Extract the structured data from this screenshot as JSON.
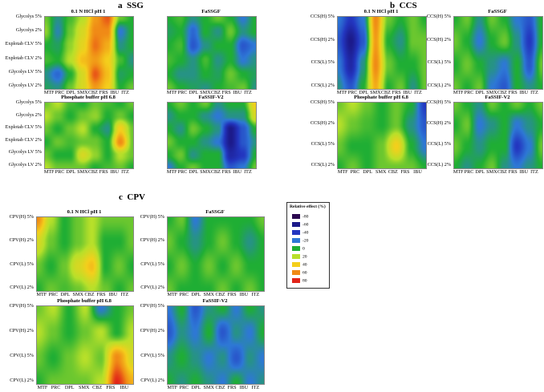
{
  "sections": [
    {
      "id": "a",
      "letter": "a",
      "name": "SSG"
    },
    {
      "id": "b",
      "letter": "b",
      "name": "CCS"
    },
    {
      "id": "c",
      "letter": "c",
      "name": "CPV"
    }
  ],
  "legend": {
    "title": "Relative effect (%)",
    "items": [
      {
        "label": "-80",
        "color": "#2b0850"
      },
      {
        "label": "-60",
        "color": "#1c1a8a"
      },
      {
        "label": "-40",
        "color": "#2336c0"
      },
      {
        "label": "-20",
        "color": "#2e78d6"
      },
      {
        "label": "0",
        "color": "#1fae34"
      },
      {
        "label": "20",
        "color": "#b8e02a"
      },
      {
        "label": "40",
        "color": "#f4cf1c"
      },
      {
        "label": "60",
        "color": "#f08a16"
      },
      {
        "label": "80",
        "color": "#e12419"
      }
    ]
  },
  "chart_data": [
    {
      "type": "heatmap",
      "section": "a",
      "title": "0.1 N HCl pH 1",
      "y_labels": [
        "Glycolys 5%",
        "Glycolys 2%",
        "Explotab CLV 5%",
        "Explotab CLV 2%",
        "Glycolys LV 5%",
        "Glycolys LV 2%"
      ],
      "x_labels": [
        "MTF",
        "PRC",
        "DPL",
        "SMX",
        "CBZ",
        "FRS",
        "IBU",
        "ITZ"
      ],
      "values": [
        [
          10,
          -10,
          5,
          20,
          55,
          70,
          10,
          0
        ],
        [
          15,
          -15,
          10,
          30,
          60,
          60,
          -20,
          0
        ],
        [
          0,
          -5,
          15,
          35,
          65,
          50,
          -10,
          0
        ],
        [
          5,
          0,
          20,
          45,
          55,
          40,
          5,
          -10
        ],
        [
          -10,
          -25,
          0,
          30,
          70,
          45,
          -5,
          0
        ],
        [
          -5,
          -10,
          10,
          30,
          55,
          40,
          0,
          10
        ]
      ]
    },
    {
      "type": "heatmap",
      "section": "a",
      "title": "FaSSGF",
      "y_labels": [],
      "x_labels": [
        "MTF",
        "PRC",
        "DPL",
        "SMX",
        "CBZ",
        "FRS",
        "IBU",
        "ITZ"
      ],
      "values": [
        [
          0,
          5,
          -10,
          0,
          10,
          0,
          -20,
          0
        ],
        [
          -5,
          0,
          -25,
          0,
          -10,
          10,
          -10,
          0
        ],
        [
          0,
          5,
          -30,
          -10,
          0,
          0,
          -30,
          -20
        ],
        [
          5,
          0,
          -10,
          5,
          -10,
          0,
          -20,
          -10
        ],
        [
          0,
          -10,
          -10,
          0,
          -5,
          10,
          0,
          -5
        ],
        [
          10,
          0,
          -5,
          -10,
          0,
          5,
          10,
          -10
        ]
      ]
    },
    {
      "type": "heatmap",
      "section": "a",
      "title": "Phosphate buffer pH 6.8",
      "y_labels": [
        "Glycolys 5%",
        "Glycolys 2%",
        "Explotab CLV 5%",
        "Explotab CLV 2%",
        "Glycolys LV 5%",
        "Glycolys LV 2%"
      ],
      "x_labels": [
        "MTF",
        "PRC",
        "DPL",
        "SMX",
        "CBZ",
        "FRS",
        "IBU",
        "ITZ"
      ],
      "values": [
        [
          10,
          20,
          5,
          0,
          10,
          5,
          0,
          10
        ],
        [
          20,
          10,
          0,
          10,
          15,
          0,
          10,
          0
        ],
        [
          10,
          0,
          10,
          20,
          0,
          -10,
          40,
          10
        ],
        [
          0,
          10,
          5,
          10,
          10,
          0,
          60,
          10
        ],
        [
          10,
          0,
          0,
          30,
          15,
          0,
          20,
          10
        ],
        [
          20,
          10,
          10,
          10,
          0,
          5,
          10,
          0
        ]
      ]
    },
    {
      "type": "heatmap",
      "section": "a",
      "title": "FaSSIF-V2",
      "y_labels": [],
      "x_labels": [
        "MTF",
        "PRC",
        "DPL",
        "SMX",
        "CBZ",
        "FRS",
        "IBU",
        "ITZ"
      ],
      "values": [
        [
          0,
          10,
          0,
          10,
          -10,
          0,
          0,
          40
        ],
        [
          -10,
          0,
          0,
          -10,
          -20,
          -10,
          -10,
          30
        ],
        [
          0,
          -10,
          10,
          0,
          -10,
          -60,
          -30,
          0
        ],
        [
          10,
          0,
          0,
          -10,
          -20,
          -60,
          -30,
          -10
        ],
        [
          0,
          10,
          -10,
          0,
          0,
          -50,
          -40,
          0
        ],
        [
          -20,
          0,
          10,
          0,
          0,
          -30,
          -20,
          10
        ]
      ]
    },
    {
      "type": "heatmap",
      "section": "b",
      "title": "0.1 N HCl pH 1",
      "y_labels": [
        "CCS(H) 5%",
        "CCS(H) 2%",
        "CCS(L) 5%",
        "CCS(L) 2%"
      ],
      "x_labels": [
        "MTF",
        "PRC",
        "DPL",
        "SMX",
        "CBZ",
        "FRS",
        "IBU",
        "ITZ"
      ],
      "values": [
        [
          -20,
          -40,
          -20,
          60,
          10,
          0,
          10,
          0
        ],
        [
          -30,
          -60,
          -30,
          55,
          0,
          -10,
          10,
          10
        ],
        [
          -20,
          -50,
          -10,
          60,
          10,
          0,
          0,
          10
        ],
        [
          -10,
          -30,
          0,
          50,
          0,
          10,
          -10,
          10
        ]
      ]
    },
    {
      "type": "heatmap",
      "section": "b",
      "title": "FaSSGF",
      "y_labels": [
        "CCS(H) 5%",
        "CCS(H) 2%",
        "CCS(L) 5%",
        "CCS(L) 2%"
      ],
      "x_labels": [
        "MTF",
        "PRC",
        "DPL",
        "SMX",
        "CBZ",
        "FRS",
        "IBU",
        "ITZ"
      ],
      "values": [
        [
          0,
          10,
          -10,
          10,
          0,
          -20,
          -30,
          0
        ],
        [
          10,
          0,
          -20,
          0,
          10,
          -10,
          -40,
          0
        ],
        [
          0,
          10,
          0,
          -10,
          -20,
          0,
          -30,
          10
        ],
        [
          10,
          0,
          10,
          -20,
          -30,
          0,
          -10,
          0
        ]
      ]
    },
    {
      "type": "heatmap",
      "section": "b",
      "title": "Phosphate buffer pH 6.8",
      "y_labels": [
        "CCS(H) 5%",
        "CCS(H) 2%",
        "CCS(L) 5%",
        "CCS(L) 2%"
      ],
      "x_labels": [
        "MTF",
        "PRC",
        "DPL",
        "SMX",
        "CBZ",
        "FRS",
        "IBU"
      ],
      "values": [
        [
          10,
          20,
          10,
          0,
          10,
          0,
          -40
        ],
        [
          20,
          10,
          5,
          0,
          10,
          -10,
          -30
        ],
        [
          10,
          0,
          0,
          10,
          40,
          0,
          -20
        ],
        [
          0,
          10,
          0,
          10,
          10,
          10,
          0
        ]
      ]
    },
    {
      "type": "heatmap",
      "section": "b",
      "title": "FaSSIF-V2",
      "y_labels": [
        "CCS(H) 5%",
        "CCS(H) 2%",
        "CCS(L) 5%",
        "CCS(L) 2%"
      ],
      "x_labels": [
        "MTF",
        "PRC",
        "DPL",
        "SMX",
        "CBZ",
        "FRS",
        "IBU",
        "ITZ"
      ],
      "values": [
        [
          10,
          0,
          -10,
          10,
          0,
          10,
          0,
          10
        ],
        [
          0,
          10,
          -20,
          -10,
          0,
          -20,
          -10,
          0
        ],
        [
          10,
          0,
          -10,
          0,
          0,
          -40,
          -20,
          10
        ],
        [
          0,
          -10,
          0,
          10,
          -10,
          -20,
          -10,
          0
        ]
      ]
    },
    {
      "type": "heatmap",
      "section": "c",
      "title": "0.1 N HCl pH 1",
      "y_labels": [
        "CPV(H) 5%",
        "CPV(H) 2%",
        "CPV(L) 5%",
        "CPV(L) 2%"
      ],
      "x_labels": [
        "MTF",
        "PRC",
        "DPL",
        "SMX",
        "CBZ",
        "FRS",
        "IBU",
        "ITZ"
      ],
      "values": [
        [
          60,
          20,
          0,
          10,
          20,
          10,
          10,
          10
        ],
        [
          30,
          10,
          0,
          10,
          20,
          0,
          0,
          10
        ],
        [
          10,
          0,
          10,
          30,
          45,
          0,
          10,
          0
        ],
        [
          0,
          10,
          5,
          10,
          20,
          10,
          0,
          10
        ]
      ]
    },
    {
      "type": "heatmap",
      "section": "c",
      "title": "FaSSGF",
      "y_labels": [
        "CPV(H) 5%",
        "CPV(H) 2%",
        "CPV(L) 5%",
        "CPV(L) 2%"
      ],
      "x_labels": [
        "MTF",
        "PRC",
        "DPL",
        "SMX",
        "CBZ",
        "FRS",
        "IBU",
        "ITZ"
      ],
      "values": [
        [
          0,
          10,
          -20,
          0,
          0,
          0,
          0,
          10
        ],
        [
          10,
          0,
          -10,
          0,
          10,
          0,
          -10,
          0
        ],
        [
          0,
          10,
          0,
          10,
          0,
          10,
          0,
          0
        ],
        [
          10,
          0,
          0,
          0,
          10,
          0,
          10,
          0
        ]
      ]
    },
    {
      "type": "heatmap",
      "section": "c",
      "title": "Phosphate buffer pH 6.8",
      "y_labels": [
        "CPV(H) 5%",
        "CPV(H) 2%",
        "CPV(L) 5%",
        "CPV(L) 2%"
      ],
      "x_labels": [
        "MTF",
        "PRC",
        "DPL",
        "SMX",
        "CBZ",
        "FRS",
        "IBU"
      ],
      "values": [
        [
          10,
          20,
          0,
          20,
          -20,
          0,
          10
        ],
        [
          20,
          10,
          0,
          10,
          20,
          0,
          20
        ],
        [
          10,
          0,
          10,
          20,
          10,
          60,
          30
        ],
        [
          0,
          10,
          10,
          10,
          20,
          80,
          50
        ]
      ]
    },
    {
      "type": "heatmap",
      "section": "c",
      "title": "FaSSIF-V2",
      "y_labels": [
        "CPV(H) 5%",
        "CPV(H) 2%",
        "CPV(L) 5%",
        "CPV(L) 2%"
      ],
      "x_labels": [
        "MTF",
        "PRC",
        "DPL",
        "SMX",
        "CBZ",
        "FRS",
        "IBU",
        "ITZ"
      ],
      "values": [
        [
          -20,
          0,
          -30,
          -10,
          0,
          -20,
          0,
          -10
        ],
        [
          -30,
          -10,
          -20,
          0,
          -30,
          -10,
          -20,
          0
        ],
        [
          -10,
          0,
          -10,
          -20,
          -10,
          -30,
          -10,
          -20
        ],
        [
          0,
          -10,
          0,
          -10,
          -20,
          0,
          -20,
          -10
        ]
      ]
    }
  ]
}
